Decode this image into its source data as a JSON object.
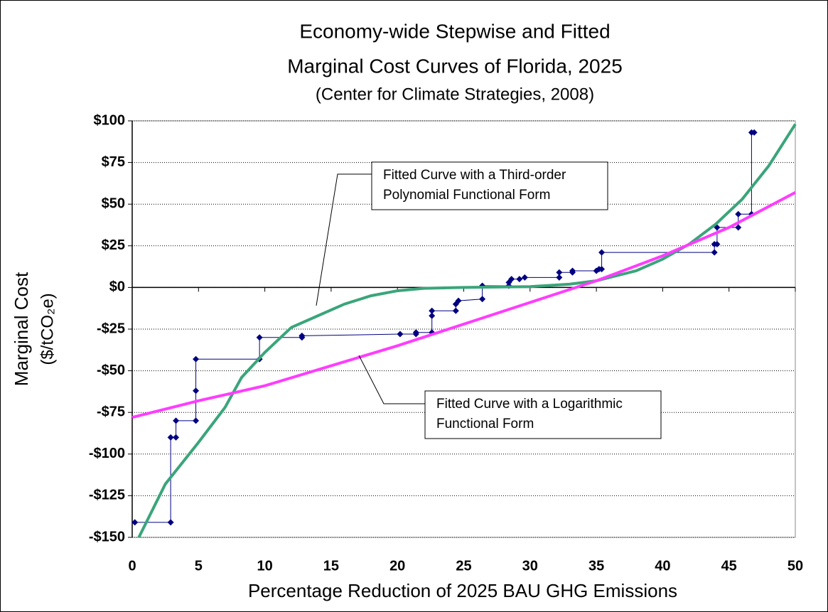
{
  "chart_data": {
    "type": "line",
    "title": [
      "Economy-wide Stepwise and Fitted",
      "Marginal Cost Curves of Florida, 2025"
    ],
    "subtitle": "(Center for Climate Strategies, 2008)",
    "x_label": "Percentage Reduction of 2025 BAU GHG Emissions",
    "y_label": [
      "Marginal Cost",
      "($/tCO₂e)"
    ],
    "xlim": [
      0,
      50
    ],
    "xticks": [
      0,
      5,
      10,
      15,
      20,
      25,
      30,
      35,
      40,
      45,
      50
    ],
    "ylim": [
      -150,
      100
    ],
    "yticks": [
      {
        "value": 100,
        "label": "$100"
      },
      {
        "value": 75,
        "label": "$75"
      },
      {
        "value": 50,
        "label": "$50"
      },
      {
        "value": 25,
        "label": "$25"
      },
      {
        "value": 0,
        "label": "$0"
      },
      {
        "value": -25,
        "label": "-$25"
      },
      {
        "value": -50,
        "label": "-$50"
      },
      {
        "value": -75,
        "label": "-$75"
      },
      {
        "value": -100,
        "label": "-$100"
      },
      {
        "value": -125,
        "label": "-$125"
      },
      {
        "value": -150,
        "label": "-$150"
      }
    ],
    "grid": true,
    "series": [
      {
        "color": "#000080",
        "marker": "diamond",
        "width": 1,
        "x": [
          0.2,
          2.9,
          2.9,
          3.3,
          3.3,
          4.8,
          4.8,
          4.8,
          9.6,
          9.6,
          12.8,
          12.8,
          20.2,
          21.4,
          21.4,
          22.6,
          22.6,
          22.6,
          24.4,
          24.4,
          24.6,
          26.4,
          26.4,
          28.4,
          28.4,
          28.6,
          29.2,
          29.6,
          32.2,
          32.2,
          33.2,
          33.2,
          35.0,
          35.2,
          35.4,
          35.4,
          43.9,
          43.9,
          44.1,
          44.1,
          45.7,
          45.7,
          46.7,
          46.7,
          46.9
        ],
        "values": [
          -141,
          -141,
          -90,
          -90,
          -80,
          -80,
          -62,
          -43,
          -43,
          -30,
          -30,
          -29,
          -28,
          -28,
          -27,
          -27,
          -17,
          -14,
          -14,
          -10,
          -8,
          -7,
          1,
          1,
          3,
          5,
          5,
          6,
          6,
          9,
          9,
          10,
          10,
          11,
          11,
          21,
          21,
          26,
          26,
          36,
          36,
          44,
          44,
          93,
          93
        ]
      },
      {
        "color": "#3aa57a",
        "width": 4,
        "x": [
          0.5,
          2.5,
          5,
          7,
          8.25,
          10,
          12,
          14,
          16,
          18,
          20,
          22,
          25,
          30,
          33,
          35,
          36,
          38,
          40,
          42,
          44,
          46,
          48,
          50
        ],
        "values": [
          -150,
          -118,
          -93,
          -72,
          -54,
          -39,
          -24,
          -17,
          -10,
          -5,
          -2,
          -0.5,
          0,
          0.5,
          2,
          4,
          6,
          10,
          17,
          26,
          38,
          53,
          73,
          98
        ]
      },
      {
        "color": "#ff3cff",
        "width": 4,
        "x": [
          0,
          5,
          10,
          15,
          20,
          25,
          30,
          35,
          40,
          45,
          50
        ],
        "values": [
          -78,
          -68,
          -59,
          -47,
          -35,
          -22,
          -9,
          4,
          19,
          36,
          57
        ]
      }
    ],
    "annotations": [
      {
        "lines": [
          "Fitted Curve with a Third-order",
          "Polynomial Functional Form"
        ]
      },
      {
        "lines": [
          "Fitted Curve with a Logarithmic",
          "Functional Form"
        ]
      }
    ]
  }
}
